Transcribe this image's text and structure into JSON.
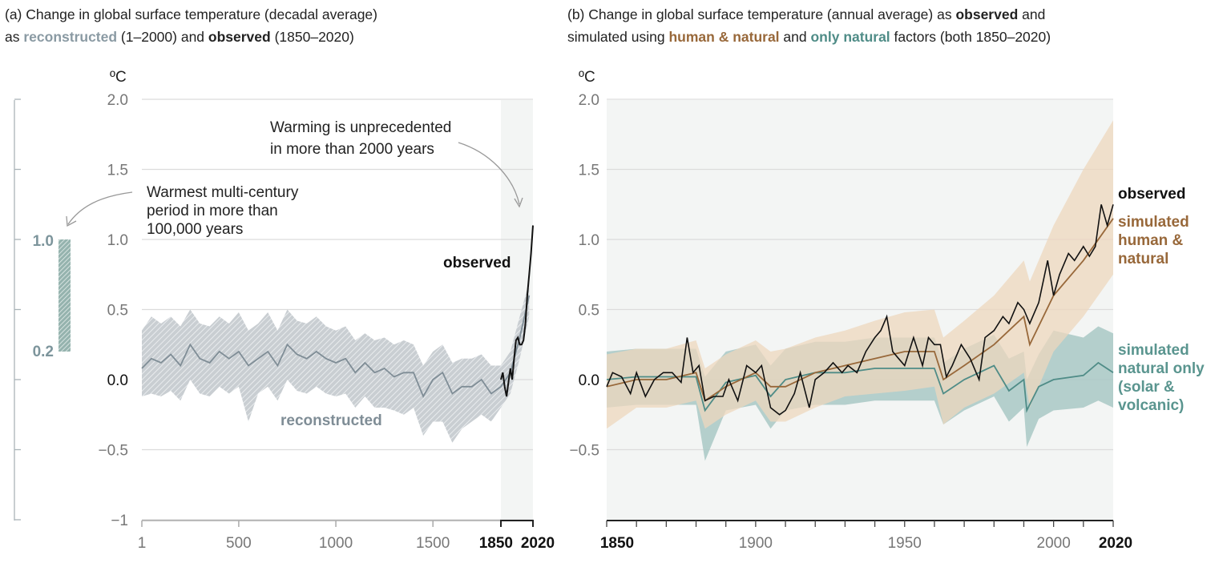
{
  "titles": {
    "a": {
      "prefix": "(a) Change in global surface temperature (decadal average)",
      "line2_pre": "as ",
      "reconstructed": "reconstructed",
      "mid": " (1–2000) and ",
      "observed": "observed",
      "suffix": " (1850–2020)"
    },
    "b": {
      "prefix": "(b) Change in global surface temperature (annual average) as ",
      "observed": "observed",
      "mid1": " and",
      "line2_pre": "simulated using ",
      "human": "human & natural",
      "mid2": " and ",
      "natural": "only natural",
      "suffix": " factors (both 1850–2020)"
    }
  },
  "colors": {
    "reconstructed": "#7f8d96",
    "reconstructed_band": "#c3c9ce",
    "observed": "#111111",
    "human": "#98683a",
    "human_band": "#eed7bd",
    "natural": "#4f8c87",
    "natural_band": "#a8c8c4",
    "shade": "#f3f5f4",
    "grid": "#dcdcdc"
  },
  "chart_data": [
    {
      "id": "a",
      "type": "line",
      "title": "(a) Change in global surface temperature (decadal average) as reconstructed (1–2000) and observed (1850–2020)",
      "ylabel": "ºC",
      "ylim": [
        -1,
        2
      ],
      "yticks": [
        "2.0",
        "1.5",
        "1.0",
        "0.5",
        "0.0",
        "−0.5",
        "−1"
      ],
      "yticks_values": [
        2,
        1.5,
        1,
        0.5,
        0,
        -0.5,
        -1
      ],
      "xticks": [
        "1",
        "500",
        "1000",
        "1500",
        "1850",
        "2020"
      ],
      "xticks_values": [
        1,
        500,
        1000,
        1500,
        1850,
        2020
      ],
      "annotations": {
        "unprecedented": [
          "Warming is unprecedented",
          "in more than 2000 years"
        ],
        "warmest": [
          "Warmest multi-century",
          "period in more than",
          "100,000 years"
        ]
      },
      "side_range": {
        "labels": [
          "1.0",
          "0.2"
        ],
        "range": [
          0.2,
          1.0
        ]
      },
      "series": [
        {
          "name": "reconstructed",
          "x": [
            1,
            50,
            100,
            150,
            200,
            250,
            300,
            350,
            400,
            450,
            500,
            550,
            600,
            650,
            700,
            750,
            800,
            850,
            900,
            950,
            1000,
            1050,
            1100,
            1150,
            1200,
            1250,
            1300,
            1350,
            1400,
            1450,
            1500,
            1550,
            1600,
            1650,
            1700,
            1750,
            1800,
            1850,
            1900,
            1950,
            2000
          ],
          "y": [
            0.08,
            0.15,
            0.12,
            0.18,
            0.1,
            0.25,
            0.15,
            0.12,
            0.2,
            0.15,
            0.2,
            0.1,
            0.15,
            0.2,
            0.1,
            0.25,
            0.18,
            0.15,
            0.2,
            0.15,
            0.12,
            0.15,
            0.05,
            0.12,
            0.05,
            0.08,
            0.02,
            0.05,
            0.05,
            -0.12,
            0.0,
            0.05,
            -0.1,
            -0.05,
            -0.05,
            0.0,
            -0.1,
            -0.05,
            0.05,
            0.3,
            0.6
          ],
          "upper": [
            0.35,
            0.45,
            0.4,
            0.45,
            0.38,
            0.5,
            0.4,
            0.38,
            0.45,
            0.4,
            0.48,
            0.35,
            0.4,
            0.48,
            0.35,
            0.5,
            0.42,
            0.4,
            0.45,
            0.38,
            0.35,
            0.38,
            0.28,
            0.33,
            0.28,
            0.3,
            0.25,
            0.28,
            0.25,
            0.1,
            0.2,
            0.25,
            0.12,
            0.15,
            0.15,
            0.18,
            0.1,
            0.1,
            0.2,
            0.45,
            0.7
          ],
          "lower": [
            -0.12,
            -0.1,
            -0.12,
            -0.08,
            -0.15,
            0.0,
            -0.1,
            -0.12,
            -0.05,
            -0.1,
            -0.05,
            -0.3,
            -0.1,
            -0.05,
            -0.15,
            0.0,
            -0.08,
            -0.1,
            -0.05,
            -0.1,
            -0.12,
            -0.1,
            -0.2,
            -0.12,
            -0.2,
            -0.2,
            -0.22,
            -0.25,
            -0.2,
            -0.4,
            -0.3,
            -0.3,
            -0.45,
            -0.35,
            -0.3,
            -0.25,
            -0.3,
            -0.2,
            -0.1,
            0.15,
            0.45
          ]
        },
        {
          "name": "observed",
          "x": [
            1850,
            1860,
            1870,
            1880,
            1890,
            1900,
            1910,
            1920,
            1930,
            1940,
            1950,
            1960,
            1970,
            1980,
            1990,
            2000,
            2010,
            2020
          ],
          "y": [
            0.0,
            0.05,
            -0.05,
            -0.12,
            -0.02,
            0.08,
            0.0,
            0.15,
            0.28,
            0.3,
            0.25,
            0.25,
            0.28,
            0.4,
            0.6,
            0.75,
            0.9,
            1.1
          ]
        }
      ],
      "labels": {
        "observed": "observed",
        "reconstructed": "reconstructed"
      }
    },
    {
      "id": "b",
      "type": "line",
      "title": "(b) Change in global surface temperature (annual average) as observed and simulated using human & natural and only natural factors (both 1850–2020)",
      "ylabel": "ºC",
      "ylim": [
        -1,
        2
      ],
      "yticks": [
        "2.0",
        "1.5",
        "1.0",
        "0.5",
        "0.0",
        "−0.5"
      ],
      "yticks_values": [
        2,
        1.5,
        1,
        0.5,
        0,
        -0.5
      ],
      "xticks": [
        "1850",
        "1900",
        "1950",
        "2000",
        "2020"
      ],
      "xticks_values": [
        1850,
        1900,
        1950,
        2000,
        2020
      ],
      "series": [
        {
          "name": "observed",
          "x": [
            1850,
            1852,
            1855,
            1858,
            1860,
            1863,
            1866,
            1869,
            1872,
            1875,
            1877,
            1879,
            1881,
            1883,
            1886,
            1889,
            1891,
            1894,
            1897,
            1900,
            1902,
            1905,
            1908,
            1910,
            1913,
            1915,
            1918,
            1920,
            1923,
            1926,
            1929,
            1931,
            1934,
            1937,
            1940,
            1942,
            1944,
            1946,
            1948,
            1950,
            1953,
            1956,
            1958,
            1960,
            1962,
            1964,
            1966,
            1969,
            1972,
            1975,
            1977,
            1980,
            1983,
            1985,
            1988,
            1990,
            1992,
            1995,
            1998,
            2000,
            2002,
            2005,
            2007,
            2010,
            2012,
            2014,
            2016,
            2018,
            2020
          ],
          "y": [
            -0.05,
            0.05,
            0.02,
            -0.1,
            0.05,
            -0.12,
            0.0,
            0.05,
            0.05,
            -0.02,
            0.3,
            0.05,
            0.1,
            -0.15,
            -0.12,
            -0.12,
            0.0,
            -0.15,
            0.1,
            0.05,
            0.1,
            -0.2,
            -0.25,
            -0.22,
            -0.1,
            0.05,
            -0.2,
            0.0,
            0.05,
            0.12,
            0.05,
            0.1,
            0.05,
            0.2,
            0.3,
            0.35,
            0.45,
            0.2,
            0.15,
            0.1,
            0.3,
            0.1,
            0.3,
            0.25,
            0.25,
            0.02,
            0.1,
            0.25,
            0.15,
            0.0,
            0.3,
            0.35,
            0.45,
            0.4,
            0.55,
            0.5,
            0.4,
            0.55,
            0.85,
            0.6,
            0.75,
            0.9,
            0.85,
            0.95,
            0.88,
            0.95,
            1.25,
            1.1,
            1.25
          ]
        },
        {
          "name": "simulated human & natural",
          "x": [
            1850,
            1860,
            1870,
            1880,
            1883,
            1890,
            1900,
            1905,
            1910,
            1920,
            1930,
            1940,
            1950,
            1960,
            1963,
            1970,
            1980,
            1990,
            1992,
            2000,
            2010,
            2020
          ],
          "y": [
            -0.05,
            0.0,
            0.0,
            0.05,
            -0.15,
            -0.05,
            0.05,
            -0.05,
            -0.05,
            0.05,
            0.1,
            0.15,
            0.2,
            0.2,
            0.0,
            0.1,
            0.25,
            0.45,
            0.25,
            0.6,
            0.85,
            1.15
          ],
          "upper": [
            0.18,
            0.22,
            0.22,
            0.28,
            0.08,
            0.18,
            0.28,
            0.2,
            0.22,
            0.3,
            0.35,
            0.42,
            0.48,
            0.5,
            0.3,
            0.42,
            0.6,
            0.85,
            0.7,
            1.1,
            1.5,
            1.85
          ],
          "lower": [
            -0.35,
            -0.2,
            -0.2,
            -0.15,
            -0.35,
            -0.25,
            -0.15,
            -0.3,
            -0.3,
            -0.2,
            -0.12,
            -0.1,
            -0.08,
            -0.05,
            -0.32,
            -0.2,
            -0.1,
            0.05,
            -0.2,
            0.2,
            0.45,
            0.75
          ]
        },
        {
          "name": "simulated natural only (solar & volcanic)",
          "x": [
            1850,
            1860,
            1870,
            1880,
            1883,
            1890,
            1900,
            1905,
            1910,
            1920,
            1930,
            1940,
            1950,
            1960,
            1963,
            1970,
            1980,
            1985,
            1990,
            1991,
            1995,
            2000,
            2010,
            2015,
            2020
          ],
          "y": [
            0.0,
            0.02,
            0.02,
            0.02,
            -0.22,
            -0.02,
            0.03,
            -0.12,
            0.0,
            0.05,
            0.05,
            0.08,
            0.08,
            0.08,
            -0.1,
            0.0,
            0.1,
            -0.08,
            0.0,
            -0.22,
            -0.05,
            0.0,
            0.03,
            0.12,
            0.05
          ],
          "upper": [
            0.2,
            0.22,
            0.22,
            0.22,
            0.02,
            0.2,
            0.25,
            0.1,
            0.22,
            0.27,
            0.27,
            0.3,
            0.3,
            0.3,
            0.12,
            0.22,
            0.32,
            0.15,
            0.2,
            0.0,
            0.18,
            0.35,
            0.3,
            0.38,
            0.33
          ],
          "lower": [
            -0.2,
            -0.18,
            -0.18,
            -0.18,
            -0.58,
            -0.22,
            -0.18,
            -0.35,
            -0.22,
            -0.18,
            -0.18,
            -0.15,
            -0.15,
            -0.15,
            -0.32,
            -0.22,
            -0.12,
            -0.3,
            -0.2,
            -0.48,
            -0.28,
            -0.22,
            -0.2,
            -0.15,
            -0.2
          ]
        }
      ],
      "labels": {
        "observed": [
          "observed"
        ],
        "human": [
          "simulated",
          "human &",
          "natural"
        ],
        "natural": [
          "simulated",
          "natural only",
          "(solar &",
          "volcanic)"
        ]
      }
    }
  ]
}
